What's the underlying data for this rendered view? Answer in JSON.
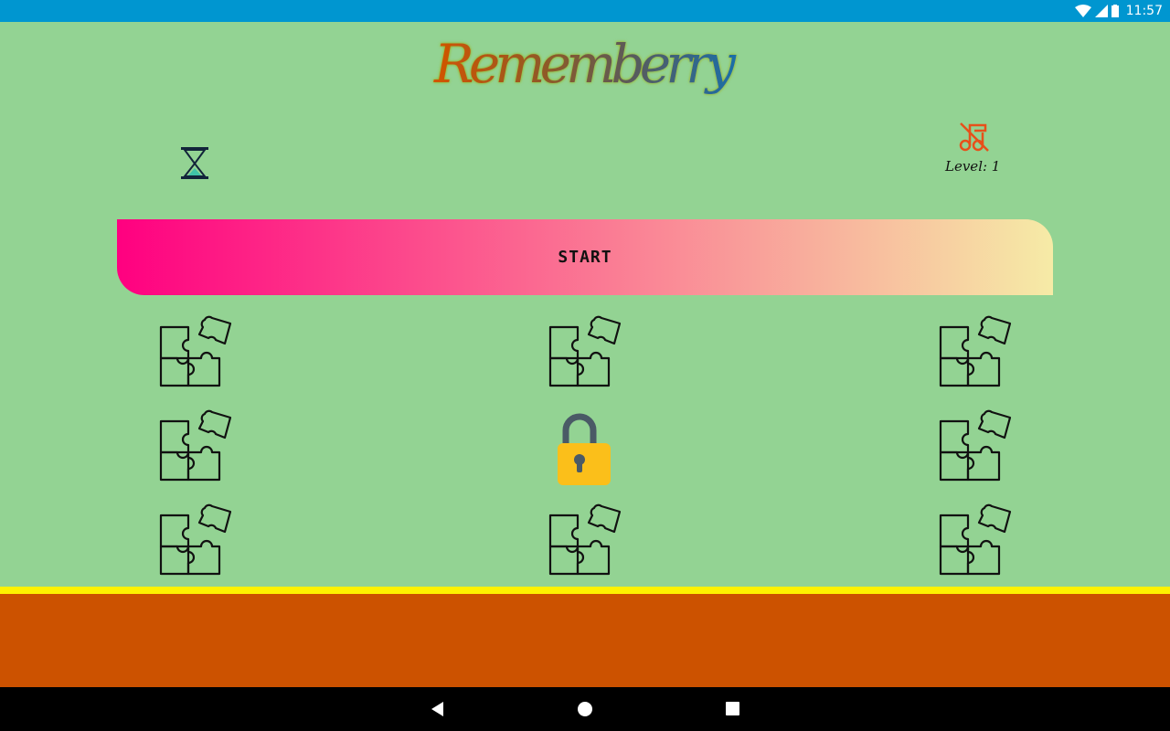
{
  "status_bar": {
    "time": "11:57",
    "icons": [
      "wifi-icon",
      "signal-icon",
      "battery-icon"
    ]
  },
  "app": {
    "title": "Rememberry",
    "title_colors": [
      "#d35400",
      "#8a5a2b",
      "#5a5a5a",
      "#1a6fa8"
    ]
  },
  "hud": {
    "timer_icon": "hourglass-icon",
    "music_icon": "music-off-icon",
    "level_label": "Level: 1"
  },
  "start_button": {
    "label": "START",
    "gradient": [
      "#ff0080",
      "#f6eba6"
    ]
  },
  "grid": {
    "cards": [
      {
        "icon": "puzzle-icon"
      },
      {
        "icon": "puzzle-icon"
      },
      {
        "icon": "puzzle-icon"
      },
      {
        "icon": "puzzle-icon"
      },
      {
        "icon": "lock-icon"
      },
      {
        "icon": "puzzle-icon"
      },
      {
        "icon": "puzzle-icon"
      },
      {
        "icon": "puzzle-icon"
      },
      {
        "icon": "puzzle-icon"
      }
    ]
  },
  "colors": {
    "background": "#93d393",
    "status_bar": "#0096d0",
    "divider": "#fff200",
    "footer": "#cc5200",
    "music_icon": "#e8501a",
    "lock_body": "#fbbf1a",
    "lock_shackle": "#4a5a66"
  },
  "nav_bar": {
    "buttons": [
      "back-icon",
      "home-icon",
      "recents-icon"
    ]
  }
}
